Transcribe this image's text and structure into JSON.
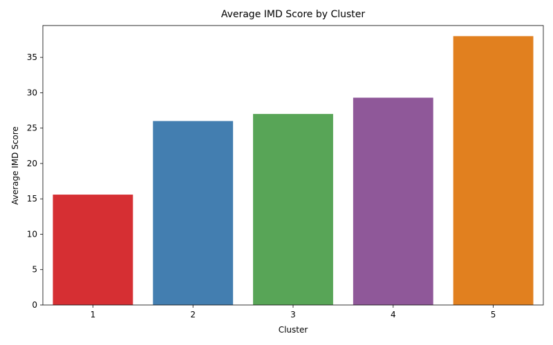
{
  "chart_data": {
    "type": "bar",
    "title": "Average IMD Score by Cluster",
    "xlabel": "Cluster",
    "ylabel": "Average IMD Score",
    "categories": [
      "1",
      "2",
      "3",
      "4",
      "5"
    ],
    "values": [
      15.6,
      26.0,
      27.0,
      29.3,
      38.0
    ],
    "colors": [
      "#d62f33",
      "#437eb0",
      "#58a557",
      "#8f5899",
      "#e1801f"
    ],
    "ylim": [
      0,
      39.5
    ],
    "yticks": [
      0,
      5,
      10,
      15,
      20,
      25,
      30,
      35
    ],
    "grid": false,
    "legend": "none"
  }
}
